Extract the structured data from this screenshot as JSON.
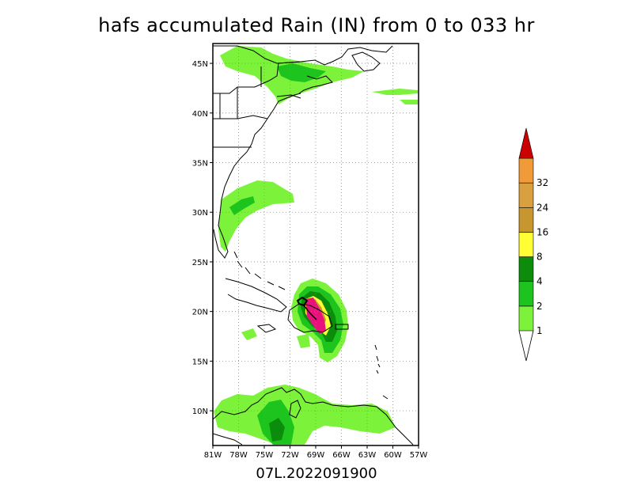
{
  "title": "hafs accumulated Rain (IN) from 0 to 033 hr",
  "subtitle": "07L.2022091900",
  "map": {
    "lon_range": [
      -81,
      -57
    ],
    "lat_range": [
      6.5,
      47
    ],
    "lon_ticks": [
      {
        "value": -81,
        "label": "81W"
      },
      {
        "value": -78,
        "label": "78W"
      },
      {
        "value": -75,
        "label": "75W"
      },
      {
        "value": -72,
        "label": "72W"
      },
      {
        "value": -69,
        "label": "69W"
      },
      {
        "value": -66,
        "label": "66W"
      },
      {
        "value": -63,
        "label": "63W"
      },
      {
        "value": -60,
        "label": "60W"
      },
      {
        "value": -57,
        "label": "57W"
      }
    ],
    "lat_ticks": [
      {
        "value": 10,
        "label": "10N"
      },
      {
        "value": 15,
        "label": "15N"
      },
      {
        "value": 20,
        "label": "20N"
      },
      {
        "value": 25,
        "label": "25N"
      },
      {
        "value": 30,
        "label": "30N"
      },
      {
        "value": 35,
        "label": "35N"
      },
      {
        "value": 40,
        "label": "40N"
      },
      {
        "value": 45,
        "label": "45N"
      }
    ],
    "grid": "dotted"
  },
  "colorbar": {
    "levels": [
      {
        "label": "1",
        "color": "#7cf33a"
      },
      {
        "label": "2",
        "color": "#1ec41e"
      },
      {
        "label": "4",
        "color": "#0b8c0b"
      },
      {
        "label": "8",
        "color": "#ffff33"
      },
      {
        "label": "16",
        "color": "#c8962e"
      },
      {
        "label": "24",
        "color": "#d9a040"
      },
      {
        "label": "32",
        "color": "#f09a38"
      }
    ],
    "top_color": "#cc0000",
    "max_color": "#e8127c"
  }
}
